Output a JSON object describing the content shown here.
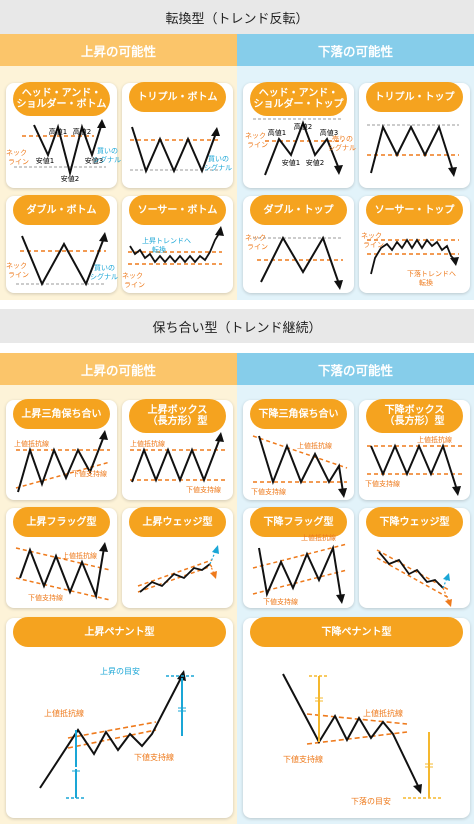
{
  "sections": {
    "reversal_title": "転換型（トレンド反転）",
    "continuation_title": "保ち合い型（トレンド継続）"
  },
  "columns": {
    "up": "上昇の可能性",
    "down": "下落の可能性"
  },
  "patterns": {
    "hs_bottom": "ヘッド・アンド・\nショルダー・ボトム",
    "triple_bottom": "トリプル・ボトム",
    "hs_top": "ヘッド・アンド・\nショルダー・トップ",
    "triple_top": "トリプル・トップ",
    "double_bottom": "ダブル・ボトム",
    "saucer_bottom": "ソーサー・ボトム",
    "double_top": "ダブル・トップ",
    "saucer_top": "ソーサー・トップ",
    "asc_triangle": "上昇三角保ち合い",
    "up_box": "上昇ボックス\n（長方形）型",
    "desc_triangle": "下降三角保ち合い",
    "down_box": "下降ボックス\n（長方形）型",
    "up_flag": "上昇フラッグ型",
    "up_wedge": "上昇ウェッジ型",
    "down_flag": "下降フラッグ型",
    "down_wedge": "下降ウェッジ型",
    "up_pennant": "上昇ペナント型",
    "down_pennant": "下降ペナント型"
  },
  "labels": {
    "neckline": "ネック\nライン",
    "buy_signal": "買いの\nシグナル",
    "sell_signal": "売りの\nシグナル",
    "high1": "高値1",
    "high2": "高値2",
    "high3": "高値3",
    "low1": "安値1",
    "low2": "安値2",
    "low3": "安値3",
    "upper_resistance": "上値抵抗線",
    "lower_support": "下値支持線",
    "up_trend_break": "上昇トレンドへ\n転換",
    "down_trend_break": "下落トレンドへ\n転換",
    "up_target": "上昇の目安",
    "down_target": "下落の目安"
  },
  "colors": {
    "orange": "#f5a31f",
    "dash": "#ee7a1c",
    "blue": "#1aa6d6",
    "yellow": "#f5b82e"
  }
}
